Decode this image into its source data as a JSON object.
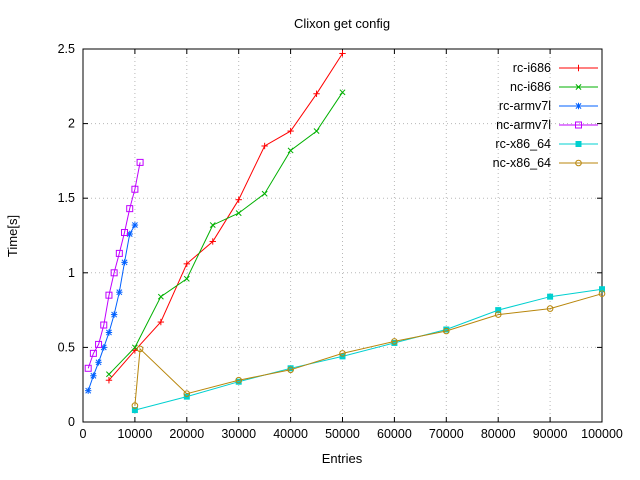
{
  "chart_data": {
    "type": "line",
    "title": "Clixon get config",
    "xlabel": "Entries",
    "ylabel": "Time[s]",
    "xlim": [
      0,
      100000
    ],
    "ylim": [
      0,
      2.5
    ],
    "grid": true,
    "legend_position": "top-right",
    "xtick_values": [
      0,
      10000,
      20000,
      30000,
      40000,
      50000,
      60000,
      70000,
      80000,
      90000,
      100000
    ],
    "xtick_labels": [
      "0",
      "10000",
      "20000",
      "30000",
      "40000",
      "50000",
      "60000",
      "70000",
      "80000",
      "90000",
      "100000"
    ],
    "ytick_values": [
      0,
      0.5,
      1,
      1.5,
      2,
      2.5
    ],
    "ytick_labels": [
      "0",
      "0.5",
      "1",
      "1.5",
      "2",
      "2.5"
    ],
    "axis_color": "#000000",
    "grid_color": "#b8b8b8",
    "series": [
      {
        "name": "rc-i686",
        "color": "#ff0000",
        "marker": "plus",
        "x": [
          5000,
          10000,
          15000,
          20000,
          25000,
          30000,
          35000,
          40000,
          45000,
          50000
        ],
        "y": [
          0.28,
          0.48,
          0.67,
          1.06,
          1.21,
          1.49,
          1.85,
          1.95,
          2.2,
          2.47
        ]
      },
      {
        "name": "nc-i686",
        "color": "#00b000",
        "marker": "cross",
        "x": [
          5000,
          10000,
          15000,
          20000,
          25000,
          30000,
          35000,
          40000,
          45000,
          50000
        ],
        "y": [
          0.32,
          0.5,
          0.84,
          0.96,
          1.32,
          1.4,
          1.53,
          1.82,
          1.95,
          2.21
        ]
      },
      {
        "name": "rc-armv7l",
        "color": "#0060ff",
        "marker": "asterisk",
        "x": [
          1000,
          2000,
          3000,
          4000,
          5000,
          6000,
          7000,
          8000,
          9000,
          10000
        ],
        "y": [
          0.21,
          0.31,
          0.4,
          0.5,
          0.6,
          0.72,
          0.87,
          1.07,
          1.26,
          1.32
        ]
      },
      {
        "name": "nc-armv7l",
        "color": "#c000ff",
        "marker": "square-open",
        "x": [
          1000,
          2000,
          3000,
          4000,
          5000,
          6000,
          7000,
          8000,
          9000,
          10000,
          11000
        ],
        "y": [
          0.36,
          0.46,
          0.52,
          0.65,
          0.85,
          1.0,
          1.13,
          1.27,
          1.43,
          1.56,
          1.74
        ]
      },
      {
        "name": "rc-x86_64",
        "color": "#00d0d0",
        "marker": "square-filled",
        "x": [
          10000,
          20000,
          30000,
          40000,
          50000,
          60000,
          70000,
          80000,
          90000,
          100000
        ],
        "y": [
          0.08,
          0.17,
          0.27,
          0.36,
          0.44,
          0.53,
          0.62,
          0.75,
          0.84,
          0.89
        ]
      },
      {
        "name": "nc-x86_64",
        "color": "#b8860b",
        "marker": "circle-open",
        "x": [
          10000,
          11000,
          20000,
          30000,
          40000,
          50000,
          60000,
          70000,
          80000,
          90000,
          100000
        ],
        "y": [
          0.11,
          0.49,
          0.19,
          0.28,
          0.35,
          0.46,
          0.54,
          0.61,
          0.72,
          0.76,
          0.86
        ]
      }
    ]
  }
}
